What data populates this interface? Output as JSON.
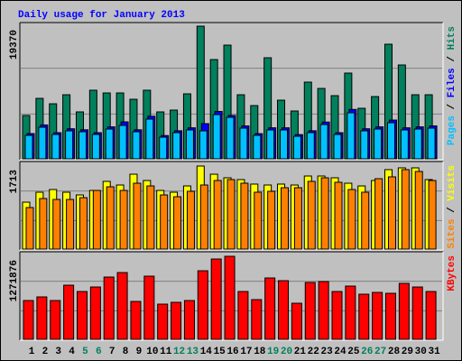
{
  "chart_data": [
    {
      "type": "bar",
      "title": "Daily usage for January 2013",
      "series": [
        {
          "name": "Hits",
          "color": "#00805c",
          "values": [
            6325,
            8829,
            8038,
            9356,
            6852,
            10015,
            9619,
            9619,
            8697,
            10015,
            6852,
            7116,
            9488,
            19370,
            14495,
            16603,
            9356,
            7774,
            14758,
            8565,
            6984,
            11200,
            10278,
            9224,
            12518,
            7379,
            9092,
            16735,
            13704,
            9356,
            9356
          ]
        },
        {
          "name": "Files",
          "color": "#0000ff",
          "values": [
            3690,
            4950,
            3820,
            4390,
            4240,
            3820,
            4670,
            5400,
            4240,
            6220,
            3400,
            4100,
            4530,
            5140,
            6920,
            6330,
            4810,
            3680,
            4530,
            4530,
            3540,
            4100,
            5370,
            3820,
            7210,
            4390,
            4670,
            5660,
            4530,
            4670,
            4810
          ]
        },
        {
          "name": "Pages",
          "color": "#00c0ff",
          "values": [
            3426,
            4612,
            3558,
            4085,
            3953,
            3558,
            4348,
            4875,
            3953,
            5798,
            3162,
            3821,
            4217,
            4085,
            6457,
            6061,
            4480,
            3426,
            4217,
            4217,
            3294,
            3821,
            5007,
            3558,
            6720,
            4085,
            4348,
            5271,
            4217,
            4348,
            4480
          ]
        }
      ],
      "ylim": [
        0,
        19370
      ],
      "yticks": [
        19370
      ]
    },
    {
      "type": "bar",
      "series": [
        {
          "name": "Visits",
          "color": "#ffff00",
          "values": [
            968,
            1173,
            1229,
            1173,
            1117,
            1210,
            1397,
            1322,
            1545,
            1415,
            1210,
            1173,
            1303,
            1713,
            1545,
            1471,
            1434,
            1341,
            1322,
            1341,
            1322,
            1508,
            1508,
            1471,
            1359,
            1303,
            1415,
            1639,
            1676,
            1676,
            1434
          ]
        },
        {
          "name": "Sites",
          "color": "#ff8000",
          "values": [
            857,
            1043,
            1024,
            1024,
            1061,
            1210,
            1285,
            1210,
            1359,
            1303,
            1117,
            1080,
            1192,
            1322,
            1415,
            1434,
            1359,
            1173,
            1192,
            1266,
            1266,
            1397,
            1471,
            1378,
            1229,
            1173,
            1452,
            1490,
            1639,
            1601,
            1415
          ]
        }
      ],
      "ylim": [
        0,
        1713
      ],
      "yticks": [
        1713
      ]
    },
    {
      "type": "bar",
      "categories": [
        "1",
        "2",
        "3",
        "4",
        "5",
        "6",
        "7",
        "8",
        "9",
        "10",
        "11",
        "12",
        "13",
        "14",
        "15",
        "16",
        "17",
        "18",
        "19",
        "20",
        "21",
        "22",
        "23",
        "24",
        "25",
        "26",
        "27",
        "28",
        "29",
        "30",
        "31"
      ],
      "category_colors": [
        "#000000",
        "#000000",
        "#000000",
        "#000000",
        "#00805c",
        "#00805c",
        "#000000",
        "#000000",
        "#000000",
        "#000000",
        "#000000",
        "#00805c",
        "#00805c",
        "#000000",
        "#000000",
        "#000000",
        "#000000",
        "#000000",
        "#00805c",
        "#00805c",
        "#000000",
        "#000000",
        "#000000",
        "#000000",
        "#000000",
        "#00805c",
        "#00805c",
        "#000000",
        "#000000",
        "#000000",
        "#000000"
      ],
      "series": [
        {
          "name": "KBytes",
          "color": "#ff0000",
          "values": [
            594475,
            649775,
            594475,
            829500,
            732725,
            801850,
            953925,
            1023050,
            580650,
            967750,
            539175,
            566825,
            594475,
            1050700,
            1230425,
            1271876,
            732725,
            608300,
            940100,
            898625,
            553000,
            870975,
            884800,
            732725,
            815675,
            691250,
            718900,
            705075,
            857150,
            801850,
            732725
          ]
        }
      ],
      "ylim": [
        0,
        1271876
      ],
      "yticks": [
        1271876
      ]
    }
  ]
}
